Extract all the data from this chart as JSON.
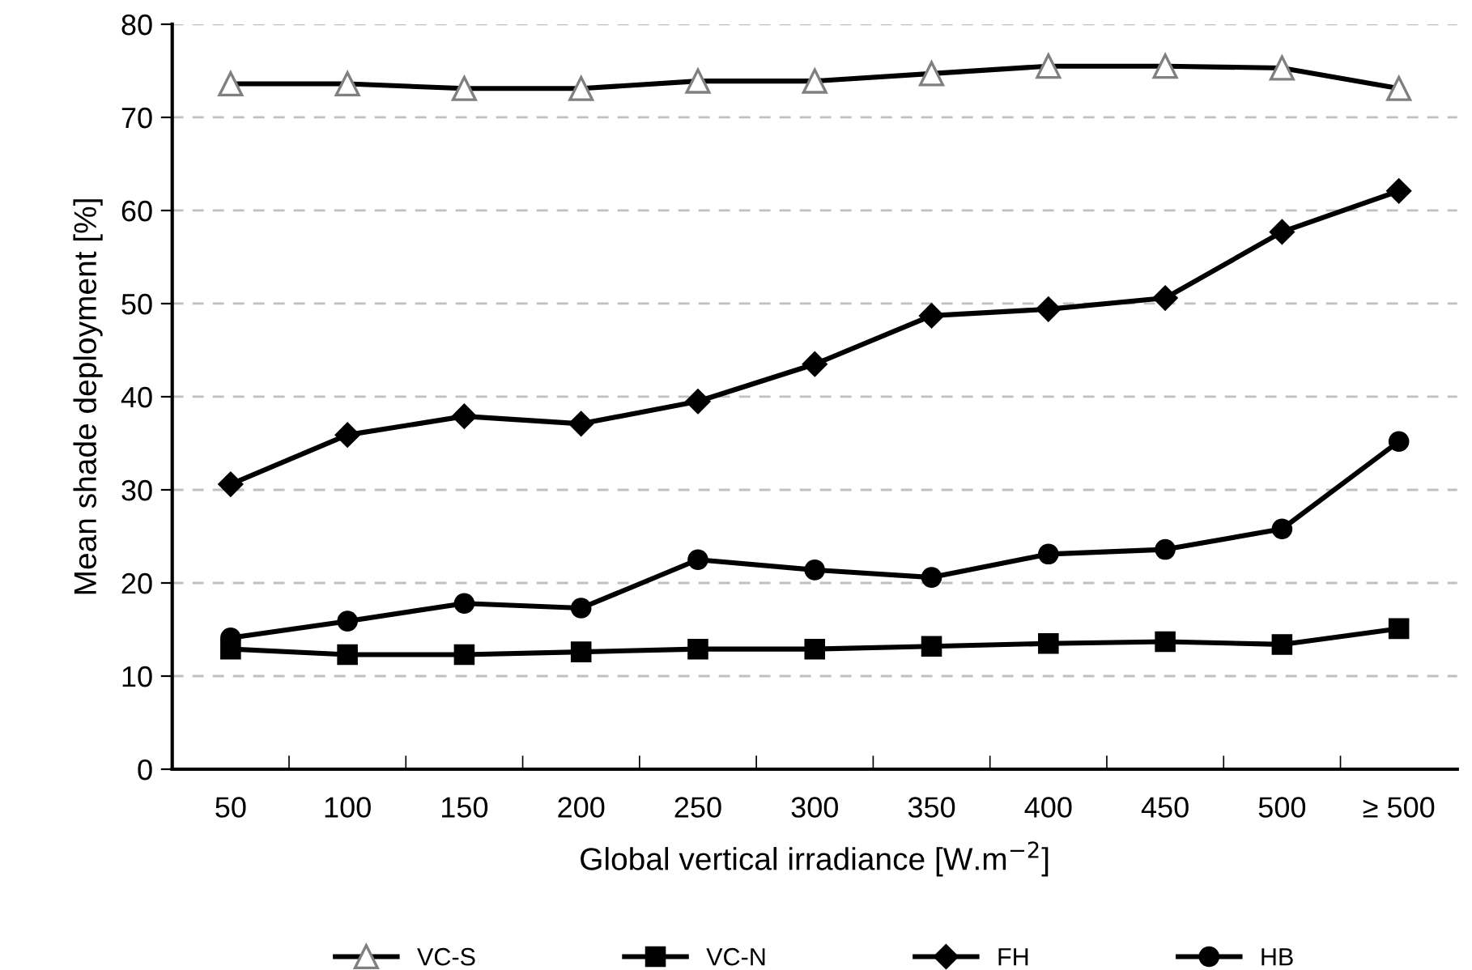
{
  "chart_data": {
    "type": "line",
    "xlabel": "Global vertical irradiance [W.m$^{−2}$]",
    "ylabel": "Mean shade deployment [%]",
    "categories": [
      "50",
      "100",
      "150",
      "200",
      "250",
      "300",
      "350",
      "400",
      "450",
      "500",
      "≥ 500"
    ],
    "ylim": [
      0,
      80
    ],
    "yticks": [
      0,
      10,
      20,
      30,
      40,
      50,
      60,
      70,
      80
    ],
    "grid": "y",
    "legend": "bottom",
    "line_style": "solid",
    "series": [
      {
        "name": "VC-S",
        "color": "#000000",
        "marker": "triangle",
        "values": [
          73.6,
          73.6,
          73.1,
          73.1,
          73.9,
          73.9,
          74.7,
          75.5,
          75.5,
          75.3,
          73.1
        ]
      },
      {
        "name": "VC-N",
        "color": "#000000",
        "marker": "square",
        "values": [
          12.9,
          12.3,
          12.3,
          12.6,
          12.9,
          12.9,
          13.2,
          13.5,
          13.7,
          13.4,
          15.1
        ]
      },
      {
        "name": "FH",
        "color": "#000000",
        "marker": "diamond",
        "values": [
          30.6,
          35.9,
          37.9,
          37.1,
          39.5,
          43.5,
          48.7,
          49.4,
          50.6,
          57.7,
          62.1
        ]
      },
      {
        "name": "HB",
        "color": "#000000",
        "marker": "circle",
        "values": [
          14.1,
          15.9,
          17.8,
          17.3,
          22.5,
          21.4,
          20.6,
          23.1,
          23.6,
          25.8,
          35.2
        ]
      }
    ]
  }
}
